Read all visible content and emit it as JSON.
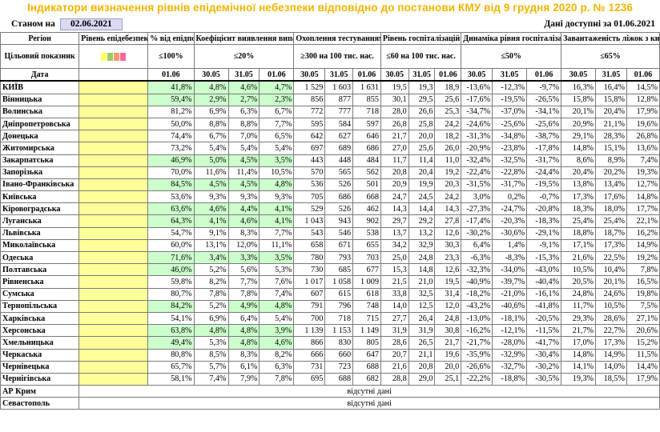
{
  "title": "Індикатори визначення рівнів епідемічної небезпеки відповідно до постанови КМУ від 9 грудня 2020 р. № 1236",
  "as_of_label": "Станом на",
  "as_of_date": "02.06.2021",
  "data_available": "Дані доступні за  01.06.2021",
  "headers": {
    "region": "Регіон",
    "level": "Рівень епідебезпеки",
    "pct_threshold": "% від епідпорогу",
    "detection": "Коефіцієнт виявлення випадків інфікування",
    "testing": "Охоплення тестуванням",
    "hosp_level": "Рівень госпіталізацій",
    "hosp_dynamic": "Динаміка рівня госпіталізації",
    "bed_load": "Завантаженість ліжок з киснем"
  },
  "target_row": {
    "label": "Цільовий показник",
    "legend_colors": [
      "#ffff66",
      "#99cc66",
      "#ff9966",
      "#ff6699"
    ],
    "pct_threshold": "≤100%",
    "detection": "≤20%",
    "testing": "≥300 на 100 тис. нас.",
    "hosp_level": "≤60 на 100 тис. нас.",
    "hosp_dynamic": "≤50%",
    "bed_load": "≤65%"
  },
  "date_row": {
    "label": "Дата",
    "pct": "01.06",
    "d1": "30.05",
    "d2": "31.05",
    "d3": "01.06"
  },
  "rows": [
    {
      "name": "КИЇВ",
      "pct": "41,8%",
      "det": [
        "4,8%",
        "4,6%",
        "4,7%"
      ],
      "test": [
        "1 529",
        "1 603",
        "1 631"
      ],
      "hosp": [
        "19,5",
        "19,3",
        "18,9"
      ],
      "dyn": [
        "-13,6%",
        "-12,3%",
        "-9,7%"
      ],
      "beds": [
        "16,3%",
        "16,4%",
        "14,5%"
      ],
      "green": true
    },
    {
      "name": "Вінницька",
      "pct": "59,4%",
      "det": [
        "2,9%",
        "2,7%",
        "2,3%"
      ],
      "test": [
        "856",
        "877",
        "855"
      ],
      "hosp": [
        "30,1",
        "29,5",
        "25,6"
      ],
      "dyn": [
        "-17,6%",
        "-19,5%",
        "-26,5%"
      ],
      "beds": [
        "15,8%",
        "15,8%",
        "12,8%"
      ],
      "green": true
    },
    {
      "name": "Волинська",
      "pct": "81,2%",
      "det": [
        "6,9%",
        "6,3%",
        "6,7%"
      ],
      "test": [
        "772",
        "777",
        "718"
      ],
      "hosp": [
        "28,0",
        "26,6",
        "25,3"
      ],
      "dyn": [
        "-34,7%",
        "-37,0%",
        "-34,1%"
      ],
      "beds": [
        "20,1%",
        "20,4%",
        "17,9%"
      ],
      "green": false
    },
    {
      "name": "Дніпропетровська",
      "pct": "50,0%",
      "det": [
        "8,8%",
        "8,8%",
        "7,7%"
      ],
      "test": [
        "595",
        "584",
        "597"
      ],
      "hosp": [
        "26,8",
        "25,8",
        "24,2"
      ],
      "dyn": [
        "-24,6%",
        "-25,6%",
        "-25,6%"
      ],
      "beds": [
        "20,9%",
        "21,1%",
        "19,6%"
      ],
      "green": false
    },
    {
      "name": "Донецька",
      "pct": "74,4%",
      "det": [
        "6,7%",
        "7,0%",
        "6,5%"
      ],
      "test": [
        "642",
        "627",
        "646"
      ],
      "hosp": [
        "21,7",
        "20,0",
        "18,2"
      ],
      "dyn": [
        "-31,3%",
        "-34,8%",
        "-38,7%"
      ],
      "beds": [
        "29,1%",
        "28,3%",
        "26,8%"
      ],
      "green": false
    },
    {
      "name": "Житомирська",
      "pct": "73,2%",
      "det": [
        "5,4%",
        "5,4%",
        "5,4%"
      ],
      "test": [
        "697",
        "689",
        "686"
      ],
      "hosp": [
        "27,0",
        "25,6",
        "26,0"
      ],
      "dyn": [
        "-20,9%",
        "-23,8%",
        "-17,8%"
      ],
      "beds": [
        "14,8%",
        "15,1%",
        "13,6%"
      ],
      "green": false
    },
    {
      "name": "Закарпатська",
      "pct": "46,9%",
      "det": [
        "5,0%",
        "4,5%",
        "3,5%"
      ],
      "test": [
        "443",
        "448",
        "484"
      ],
      "hosp": [
        "11,7",
        "11,4",
        "11,0"
      ],
      "dyn": [
        "-32,4%",
        "-32,5%",
        "-31,7%"
      ],
      "beds": [
        "8,6%",
        "8,9%",
        "7,4%"
      ],
      "green": true
    },
    {
      "name": "Запорізька",
      "pct": "70,0%",
      "det": [
        "11,6%",
        "11,4%",
        "10,5%"
      ],
      "test": [
        "570",
        "565",
        "562"
      ],
      "hosp": [
        "20,8",
        "20,4",
        "19,2"
      ],
      "dyn": [
        "-22,4%",
        "-22,8%",
        "-24,4%"
      ],
      "beds": [
        "20,4%",
        "20,2%",
        "19,3%"
      ],
      "green": false
    },
    {
      "name": "Івано-Франківська",
      "pct": "84,5%",
      "det": [
        "4,5%",
        "4,5%",
        "4,8%"
      ],
      "test": [
        "536",
        "526",
        "501"
      ],
      "hosp": [
        "20,9",
        "19,9",
        "20,3"
      ],
      "dyn": [
        "-31,5%",
        "-31,7%",
        "-19,5%"
      ],
      "beds": [
        "13,8%",
        "13,4%",
        "12,7%"
      ],
      "green": true
    },
    {
      "name": "Київська",
      "pct": "53,6%",
      "det": [
        "9,3%",
        "9,3%",
        "9,3%"
      ],
      "test": [
        "705",
        "686",
        "668"
      ],
      "hosp": [
        "24,7",
        "24,5",
        "24,2"
      ],
      "dyn": [
        "3,0%",
        "0,2%",
        "-0,7%"
      ],
      "beds": [
        "17,3%",
        "17,6%",
        "14,8%"
      ],
      "green": false
    },
    {
      "name": "Кіровоградська",
      "pct": "63,6%",
      "det": [
        "4,6%",
        "4,4%",
        "4,1%"
      ],
      "test": [
        "529",
        "526",
        "462"
      ],
      "hosp": [
        "14,3",
        "14,4",
        "14,3"
      ],
      "dyn": [
        "-27,3%",
        "-24,7%",
        "-20,8%"
      ],
      "beds": [
        "18,3%",
        "18,0%",
        "17,7%"
      ],
      "green": true
    },
    {
      "name": "Луганська",
      "pct": "64,3%",
      "det": [
        "4,1%",
        "4,6%",
        "4,1%"
      ],
      "test": [
        "1 043",
        "943",
        "902"
      ],
      "hosp": [
        "29,7",
        "29,2",
        "27,8"
      ],
      "dyn": [
        "-17,4%",
        "-20,3%",
        "-18,3%"
      ],
      "beds": [
        "25,4%",
        "25,4%",
        "22,1%"
      ],
      "green": true
    },
    {
      "name": "Львівська",
      "pct": "54,7%",
      "det": [
        "9,1%",
        "8,3%",
        "7,7%"
      ],
      "test": [
        "543",
        "546",
        "538"
      ],
      "hosp": [
        "13,7",
        "13,2",
        "12,6"
      ],
      "dyn": [
        "-30,2%",
        "-30,6%",
        "-29,1%"
      ],
      "beds": [
        "18,8%",
        "18,7%",
        "16,2%"
      ],
      "green": false
    },
    {
      "name": "Миколаївська",
      "pct": "60,0%",
      "det": [
        "13,1%",
        "12,0%",
        "11,1%"
      ],
      "test": [
        "658",
        "671",
        "655"
      ],
      "hosp": [
        "34,2",
        "32,9",
        "30,3"
      ],
      "dyn": [
        "6,4%",
        "1,4%",
        "-9,1%"
      ],
      "beds": [
        "17,1%",
        "17,3%",
        "14,9%"
      ],
      "green": false
    },
    {
      "name": "Одеська",
      "pct": "71,6%",
      "det": [
        "3,4%",
        "3,3%",
        "3,5%"
      ],
      "test": [
        "780",
        "793",
        "703"
      ],
      "hosp": [
        "25,0",
        "24,8",
        "23,3"
      ],
      "dyn": [
        "-6,3%",
        "-8,3%",
        "-15,3%"
      ],
      "beds": [
        "21,6%",
        "22,5%",
        "19,2%"
      ],
      "green": true
    },
    {
      "name": "Полтавська",
      "pct": "46,0%",
      "det": [
        "5,2%",
        "5,6%",
        "5,3%"
      ],
      "test": [
        "730",
        "685",
        "677"
      ],
      "hosp": [
        "15,3",
        "14,8",
        "12,6"
      ],
      "dyn": [
        "-32,3%",
        "-34,0%",
        "-43,0%"
      ],
      "beds": [
        "10,5%",
        "10,4%",
        "7,8%"
      ],
      "green": true,
      "greenPctOnly": true
    },
    {
      "name": "Рівненська",
      "pct": "59,8%",
      "det": [
        "8,2%",
        "7,7%",
        "7,6%"
      ],
      "test": [
        "1 017",
        "1 058",
        "1 009"
      ],
      "hosp": [
        "21,5",
        "21,0",
        "19,5"
      ],
      "dyn": [
        "-40,9%",
        "-39,7%",
        "-40,4%"
      ],
      "beds": [
        "20,5%",
        "20,1%",
        "16,5%"
      ],
      "green": false
    },
    {
      "name": "Сумська",
      "pct": "80,7%",
      "det": [
        "7,8%",
        "7,8%",
        "7,4%"
      ],
      "test": [
        "607",
        "615",
        "618"
      ],
      "hosp": [
        "33,8",
        "32,5",
        "31,4"
      ],
      "dyn": [
        "-18,2%",
        "-21,0%",
        "-16,1%"
      ],
      "beds": [
        "24,8%",
        "24,6%",
        "19,8%"
      ],
      "green": false
    },
    {
      "name": "Тернопільська",
      "pct": "84,2%",
      "det": [
        "5,2%",
        "4,9%",
        "4,8%"
      ],
      "test": [
        "791",
        "796",
        "748"
      ],
      "hosp": [
        "14,0",
        "12,5",
        "12,0"
      ],
      "dyn": [
        "-43,2%",
        "-40,6%",
        "-41,8%"
      ],
      "beds": [
        "11,7%",
        "10,5%",
        "7,5%"
      ],
      "green": true,
      "greenDetFrom": 1
    },
    {
      "name": "Харківська",
      "pct": "54,1%",
      "det": [
        "6,9%",
        "6,4%",
        "5,4%"
      ],
      "test": [
        "700",
        "718",
        "715"
      ],
      "hosp": [
        "27,7",
        "26,4",
        "24,8"
      ],
      "dyn": [
        "-13,0%",
        "-18,1%",
        "-20,5%"
      ],
      "beds": [
        "29,3%",
        "28,6%",
        "27,1%"
      ],
      "green": false
    },
    {
      "name": "Херсонська",
      "pct": "63,8%",
      "det": [
        "4,8%",
        "4,8%",
        "3,9%"
      ],
      "test": [
        "1 139",
        "1 153",
        "1 149"
      ],
      "hosp": [
        "31,9",
        "31,9",
        "30,8"
      ],
      "dyn": [
        "-16,2%",
        "-12,1%",
        "-11,5%"
      ],
      "beds": [
        "21,7%",
        "22,7%",
        "20,6%"
      ],
      "green": true
    },
    {
      "name": "Хмельницька",
      "pct": "49,4%",
      "det": [
        "5,3%",
        "4,8%",
        "4,6%"
      ],
      "test": [
        "866",
        "830",
        "805"
      ],
      "hosp": [
        "28,6",
        "26,5",
        "21,7"
      ],
      "dyn": [
        "-21,7%",
        "-28,0%",
        "-41,7%"
      ],
      "beds": [
        "17,0%",
        "17,3%",
        "15,2%"
      ],
      "green": true,
      "greenDetFrom": 1
    },
    {
      "name": "Черкаська",
      "pct": "80,8%",
      "det": [
        "8,5%",
        "8,3%",
        "8,2%"
      ],
      "test": [
        "666",
        "660",
        "647"
      ],
      "hosp": [
        "20,7",
        "21,1",
        "19,6"
      ],
      "dyn": [
        "-35,9%",
        "-32,9%",
        "-30,4%"
      ],
      "beds": [
        "14,8%",
        "14,9%",
        "11,5%"
      ],
      "green": false
    },
    {
      "name": "Чернівецька",
      "pct": "65,7%",
      "det": [
        "5,7%",
        "6,1%",
        "6,3%"
      ],
      "test": [
        "731",
        "723",
        "688"
      ],
      "hosp": [
        "21,6",
        "20,8",
        "20,0"
      ],
      "dyn": [
        "-26,6%",
        "-32,7%",
        "-30,2%"
      ],
      "beds": [
        "14,1%",
        "14,0%",
        "14,4%"
      ],
      "green": false
    },
    {
      "name": "Чернігівська",
      "pct": "58,1%",
      "det": [
        "7,4%",
        "7,9%",
        "7,8%"
      ],
      "test": [
        "695",
        "688",
        "682"
      ],
      "hosp": [
        "28,8",
        "29,0",
        "25,1"
      ],
      "dyn": [
        "-22,2%",
        "-18,8%",
        "-30,5%"
      ],
      "beds": [
        "19,3%",
        "18,5%",
        "17,9%"
      ],
      "green": false
    }
  ],
  "nodata_rows": [
    {
      "name": "АР Крим",
      "text": "відсутні дані"
    },
    {
      "name": "Севастополь",
      "text": "відсутні дані"
    }
  ]
}
